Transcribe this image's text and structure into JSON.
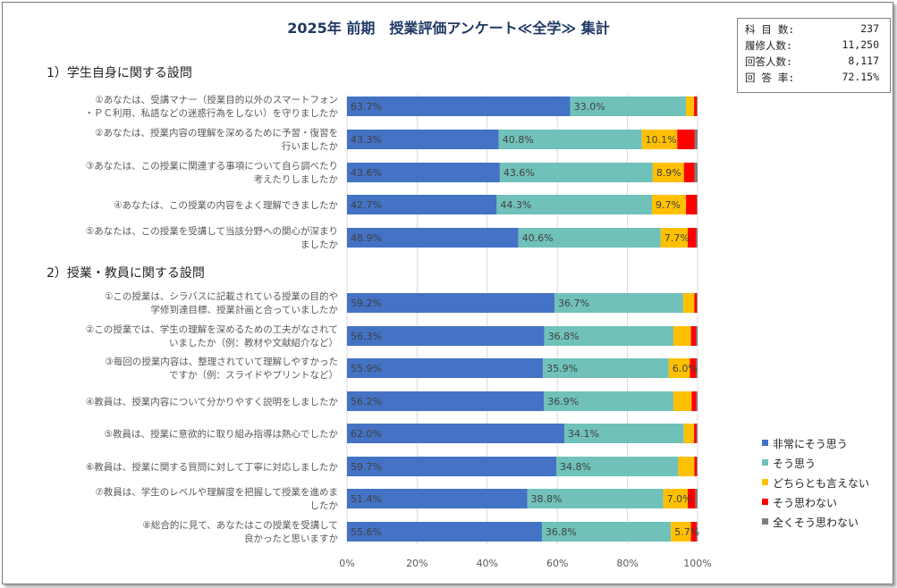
{
  "title": "2025年 前期　授業評価アンケート≪全学≫ 集計",
  "stats": [
    {
      "label": "科 目 数:",
      "value": "237"
    },
    {
      "label": "履修人数:",
      "value": "11,250"
    },
    {
      "label": "回答人数:",
      "value": "8,117"
    },
    {
      "label": "回 答 率:",
      "value": "72.15%"
    }
  ],
  "sections": [
    {
      "heading": "1）学生自身に関する設問"
    },
    {
      "heading": "2）授業・教員に関する設問"
    }
  ],
  "colors": {
    "series": [
      "#4472c4",
      "#70c1b9",
      "#ffc000",
      "#ff0000",
      "#7f7f7f"
    ],
    "title": "#1f3864"
  },
  "chart_data": {
    "type": "bar",
    "orientation": "horizontal",
    "stacked": "100%",
    "xlim": [
      0,
      100
    ],
    "x_ticks": [
      "0%",
      "20%",
      "40%",
      "60%",
      "80%",
      "100%"
    ],
    "grid": true,
    "legend_position": "right",
    "categories": [
      [
        "①あなたは、受講マナー（授業目的以外のスマートフォン",
        "・ＰＣ利用、私語などの迷惑行為をしない）を守りましたか"
      ],
      [
        "②あなたは、授業内容の理解を深めるために予習・復習を",
        "行いましたか"
      ],
      [
        "③あなたは、この授業に関連する事項について自ら調べたり",
        "考えたりしましたか"
      ],
      [
        "④あなたは、この授業の内容をよく理解できましたか"
      ],
      [
        "⑤あなたは、この授業を受講して当該分野への関心が深まり",
        "ましたか"
      ],
      [
        "①この授業は、シラバスに記載されている授業の目的や",
        "学修到達目標、授業計画と合っていましたか"
      ],
      [
        "②この授業では、学生の理解を深めるための工夫がなされて",
        "いましたか（例：教材や文献紹介など）"
      ],
      [
        "③毎回の授業内容は、整理されていて理解しやすかった",
        "ですか（例：スライドやプリントなど）"
      ],
      [
        "④教員は、授業内容について分かりやすく説明をしましたか"
      ],
      [
        "⑤教員は、授業に意欲的に取り組み指導は熱心でしたか"
      ],
      [
        "⑥教員は、授業に関する質問に対して丁寧に対応しましたか"
      ],
      [
        "⑦教員は、学生のレベルや理解度を把握して授業を進めま",
        "したか"
      ],
      [
        "⑧総合的に見て、あなたはこの授業を受講して",
        "良かったと思いますか"
      ]
    ],
    "series": [
      {
        "name": "非常にそう思う",
        "values": [
          63.7,
          43.3,
          43.6,
          42.7,
          48.9,
          59.2,
          56.3,
          55.9,
          56.2,
          62.0,
          59.7,
          51.4,
          55.6
        ]
      },
      {
        "name": "そう思う",
        "values": [
          33.0,
          40.8,
          43.6,
          44.3,
          40.6,
          36.7,
          36.8,
          35.9,
          36.9,
          34.1,
          34.8,
          38.8,
          36.8
        ]
      },
      {
        "name": "どちらとも言えない",
        "values": [
          2.3,
          10.1,
          8.9,
          9.7,
          7.7,
          3.2,
          5.0,
          6.0,
          5.2,
          2.9,
          4.6,
          7.0,
          5.7
        ]
      },
      {
        "name": "そう思わない",
        "values": [
          0.8,
          5.0,
          3.0,
          3.1,
          2.4,
          0.7,
          1.5,
          1.8,
          1.3,
          0.7,
          0.7,
          2.2,
          1.6
        ]
      },
      {
        "name": "全くそう思わない",
        "values": [
          0.2,
          0.8,
          0.9,
          0.2,
          0.4,
          0.2,
          0.4,
          0.4,
          0.4,
          0.3,
          0.2,
          0.6,
          0.3
        ]
      }
    ],
    "data_labels": [
      [
        "63.7%",
        "33.0%",
        "",
        "",
        ""
      ],
      [
        "43.3%",
        "40.8%",
        "10.1%",
        "",
        ""
      ],
      [
        "43.6%",
        "43.6%",
        "8.9%",
        "",
        ""
      ],
      [
        "42.7%",
        "44.3%",
        "9.7%",
        "",
        ""
      ],
      [
        "48.9%",
        "40.6%",
        "7.7%",
        "",
        ""
      ],
      [
        "59.2%",
        "36.7%",
        "",
        "",
        ""
      ],
      [
        "56.3%",
        "36.8%",
        "",
        "",
        ""
      ],
      [
        "55.9%",
        "35.9%",
        "6.0%",
        "",
        ""
      ],
      [
        "56.2%",
        "36.9%",
        "",
        "",
        ""
      ],
      [
        "62.0%",
        "34.1%",
        "",
        "",
        ""
      ],
      [
        "59.7%",
        "34.8%",
        "",
        "",
        ""
      ],
      [
        "51.4%",
        "38.8%",
        "7.0%",
        "",
        ""
      ],
      [
        "55.6%",
        "36.8%",
        "5.7%",
        "",
        ""
      ]
    ]
  }
}
